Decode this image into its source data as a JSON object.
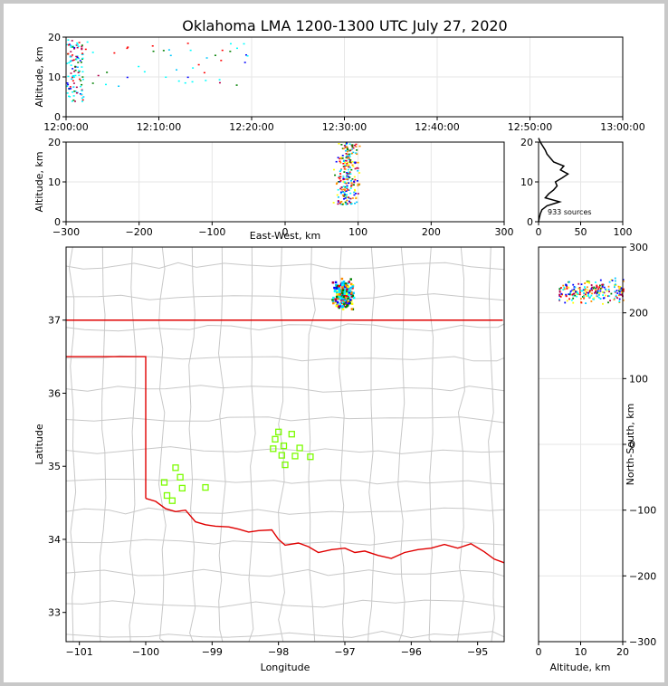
{
  "title": "Oklahoma LMA 1200-1300 UTC July 27, 2020",
  "colors": {
    "state_border": "#e00000",
    "county_lines": "#c8c8c8",
    "stations": "#7cfc00",
    "grid": "#e6e6e6",
    "source_palette": [
      "#00ffff",
      "#00c8ff",
      "#0000ff",
      "#008000",
      "#ffff00",
      "#ff8c00",
      "#ff0000",
      "#b4004c"
    ]
  },
  "chart_data": [
    {
      "id": "time_height",
      "type": "scatter",
      "ylabel": "Altitude, km",
      "xlim": [
        "12:00:00",
        "13:00:00"
      ],
      "ylim": [
        0,
        20
      ],
      "xticks": [
        "12:00:00",
        "12:10:00",
        "12:20:00",
        "12:30:00",
        "12:40:00",
        "12:50:00",
        "13:00:00"
      ],
      "yticks": [
        "0",
        "10",
        "20"
      ],
      "clusters": [
        {
          "t_min": 0.0,
          "t_max": 1.8,
          "z_min": 4,
          "z_max": 19.5,
          "n": 110
        },
        {
          "t_min": 2.0,
          "t_max": 20.0,
          "z_min": 7.5,
          "z_max": 19,
          "n": 45
        }
      ]
    },
    {
      "id": "ew_height",
      "type": "scatter",
      "xlabel": "East-West, km",
      "ylabel": "Altitude, km",
      "xlim": [
        -300,
        300
      ],
      "ylim": [
        0,
        20
      ],
      "xticks": [
        "−300",
        "−200",
        "−100",
        "0",
        "100",
        "200",
        "300"
      ],
      "yticks": [
        "0",
        "10",
        "20"
      ],
      "clusters": [
        {
          "x_min": 68,
          "x_max": 100,
          "z_min": 4.5,
          "z_max": 20,
          "n": 240
        }
      ]
    },
    {
      "id": "histogram",
      "type": "line",
      "xlim": [
        0,
        100
      ],
      "ylim": [
        0,
        20
      ],
      "xticks": [
        "0",
        "50",
        "100"
      ],
      "yticks": [
        "0",
        "10",
        "20"
      ],
      "annotation": "933 sources",
      "altitude_km": [
        0,
        1,
        2,
        3,
        4,
        5,
        6,
        7,
        8,
        9,
        10,
        11,
        12,
        13,
        14,
        15,
        16,
        17,
        18,
        19,
        20,
        21
      ],
      "count": [
        0,
        1,
        2,
        4,
        10,
        25,
        8,
        12,
        18,
        22,
        20,
        28,
        35,
        26,
        30,
        18,
        14,
        10,
        8,
        5,
        2,
        0
      ]
    },
    {
      "id": "plan_view",
      "type": "map",
      "xlabel": "Longitude",
      "ylabel": "Latitude",
      "xlim": [
        -101.2,
        -94.6
      ],
      "ylim": [
        32.6,
        38.0
      ],
      "xticks": [
        "−101",
        "−100",
        "−99",
        "−98",
        "−97",
        "−96",
        "−95"
      ],
      "yticks": [
        "33",
        "34",
        "35",
        "36",
        "37"
      ],
      "stations": [
        {
          "lon": -99.55,
          "lat": 34.98
        },
        {
          "lon": -99.48,
          "lat": 34.85
        },
        {
          "lon": -99.72,
          "lat": 34.78
        },
        {
          "lon": -99.45,
          "lat": 34.7
        },
        {
          "lon": -99.1,
          "lat": 34.71
        },
        {
          "lon": -99.68,
          "lat": 34.6
        },
        {
          "lon": -99.6,
          "lat": 34.53
        },
        {
          "lon": -98.0,
          "lat": 35.47
        },
        {
          "lon": -97.8,
          "lat": 35.44
        },
        {
          "lon": -98.05,
          "lat": 35.37
        },
        {
          "lon": -97.92,
          "lat": 35.28
        },
        {
          "lon": -98.08,
          "lat": 35.24
        },
        {
          "lon": -97.68,
          "lat": 35.25
        },
        {
          "lon": -97.95,
          "lat": 35.15
        },
        {
          "lon": -97.75,
          "lat": 35.14
        },
        {
          "lon": -97.52,
          "lat": 35.13
        },
        {
          "lon": -97.9,
          "lat": 35.02
        }
      ],
      "source_cluster": {
        "lon_min": -97.22,
        "lon_max": -96.85,
        "lat_min": 37.15,
        "lat_max": 37.6,
        "n": 200
      }
    },
    {
      "id": "ns_height",
      "type": "scatter",
      "xlabel": "Altitude, km",
      "ylabel": "North-South, km",
      "xlim": [
        0,
        20
      ],
      "ylim": [
        -300,
        300
      ],
      "xticks": [
        "0",
        "10",
        "20"
      ],
      "yticks": [
        "−300",
        "−200",
        "−100",
        "0",
        "100",
        "200",
        "300"
      ],
      "clusters": [
        {
          "z_min": 4.5,
          "z_max": 20,
          "y_min": 212,
          "y_max": 255,
          "n": 220
        }
      ]
    }
  ]
}
